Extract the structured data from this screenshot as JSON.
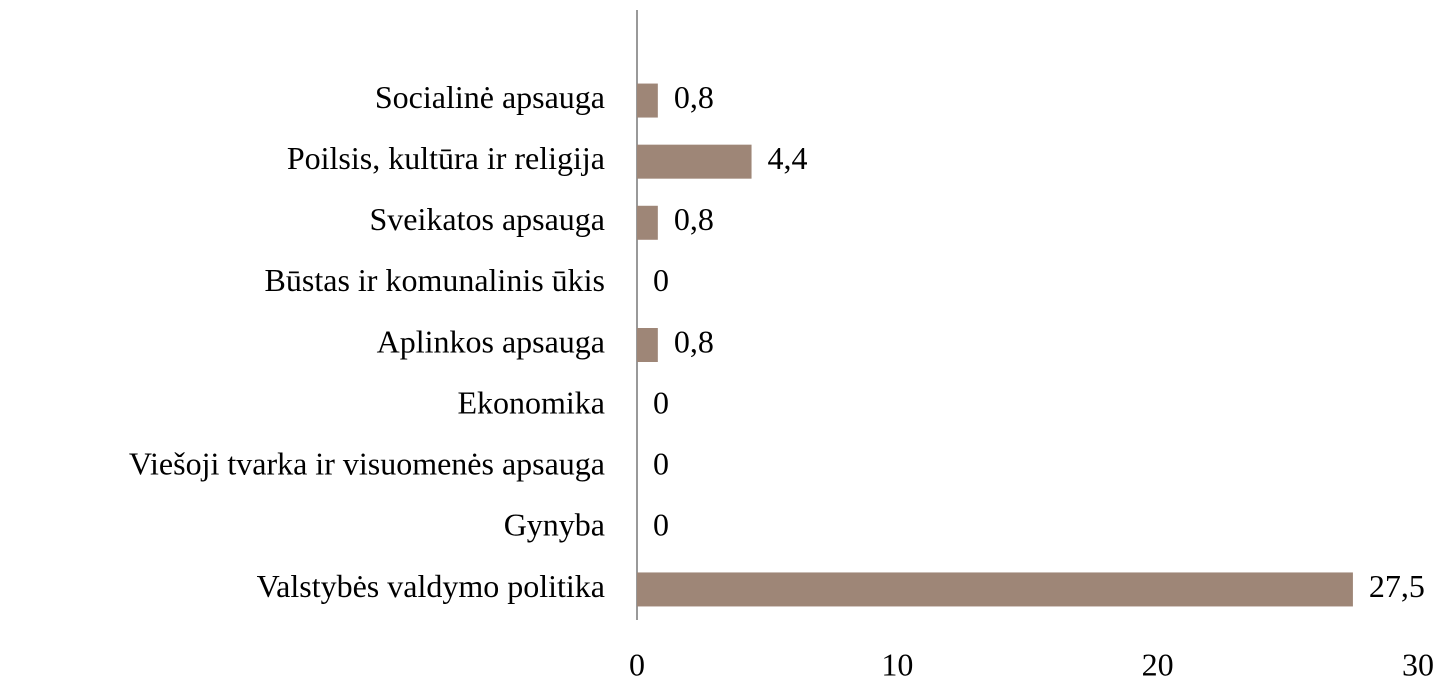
{
  "chart_data": {
    "type": "barh",
    "categories": [
      "Socialinė apsauga",
      "Poilsis, kultūra ir religija",
      "Sveikatos apsauga",
      "Būstas ir komunalinis ūkis",
      "Aplinkos apsauga",
      "Ekonomika",
      "Viešoji tvarka ir visuomenės apsauga",
      "Gynyba",
      "Valstybės valdymo politika"
    ],
    "values": [
      0.8,
      4.4,
      0.8,
      0,
      0.8,
      0,
      0,
      0,
      27.5
    ],
    "value_labels": [
      "0,8",
      "4,4",
      "0,8",
      "0",
      "0,8",
      "0",
      "0",
      "0",
      "27,5"
    ],
    "color": "#9e8677",
    "xlim": [
      0,
      30
    ],
    "xticks": [
      0,
      10,
      20,
      30
    ],
    "grid": false
  }
}
